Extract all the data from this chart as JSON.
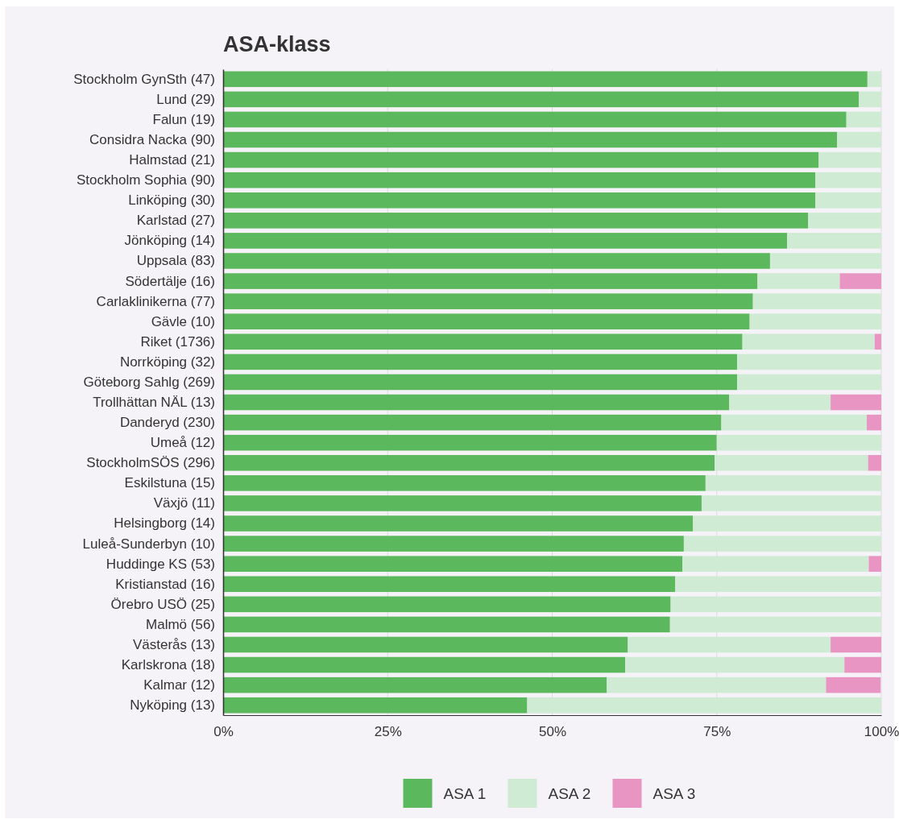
{
  "chart_data": {
    "type": "bar",
    "orientation": "horizontal",
    "stacked": true,
    "title": "ASA-klass",
    "categories": [
      "Stockholm GynSth (47)",
      "Lund (29)",
      "Falun (19)",
      "Considra Nacka (90)",
      "Halmstad (21)",
      "Stockholm Sophia (90)",
      "Linköping (30)",
      "Karlstad (27)",
      "Jönköping (14)",
      "Uppsala (83)",
      "Södertälje (16)",
      "Carlaklinikerna (77)",
      "Gävle (10)",
      "Riket (1736)",
      "Norrköping (32)",
      "Göteborg Sahlg (269)",
      "Trollhättan NÄL (13)",
      "Danderyd (230)",
      "Umeå (12)",
      "StockholmSÖS (296)",
      "Eskilstuna (15)",
      "Växjö (11)",
      "Helsingborg (14)",
      "Luleå-Sunderbyn (10)",
      "Huddinge KS (53)",
      "Kristianstad (16)",
      "Örebro USÖ (25)",
      "Malmö (56)",
      "Västerås (13)",
      "Karlskrona (18)",
      "Kalmar (12)",
      "Nyköping (13)"
    ],
    "series": [
      {
        "name": "ASA 1",
        "color": "#5cb85c",
        "values": [
          97.9,
          96.6,
          94.7,
          93.3,
          90.5,
          90.0,
          90.0,
          88.9,
          85.7,
          83.1,
          81.2,
          80.5,
          80.0,
          78.9,
          78.1,
          78.1,
          76.9,
          75.7,
          75.0,
          74.7,
          73.3,
          72.7,
          71.4,
          70.0,
          69.8,
          68.7,
          68.0,
          67.9,
          61.5,
          61.1,
          58.3,
          46.2
        ]
      },
      {
        "name": "ASA 2",
        "color": "#d0ebd4",
        "values": [
          2.1,
          3.4,
          5.3,
          6.7,
          9.5,
          10.0,
          10.0,
          11.1,
          14.3,
          16.9,
          12.5,
          19.5,
          20.0,
          20.1,
          21.9,
          21.9,
          15.4,
          22.1,
          25.0,
          23.3,
          26.7,
          27.3,
          28.6,
          30.0,
          28.3,
          31.3,
          32.0,
          32.1,
          30.8,
          33.3,
          33.3,
          53.8
        ]
      },
      {
        "name": "ASA 3",
        "color": "#e895c3",
        "values": [
          0,
          0,
          0,
          0,
          0,
          0,
          0,
          0,
          0,
          0,
          6.3,
          0,
          0,
          1.0,
          0,
          0,
          7.7,
          2.2,
          0,
          2.0,
          0,
          0,
          0,
          0,
          1.9,
          0,
          0,
          0,
          7.7,
          5.6,
          8.3,
          0
        ]
      }
    ],
    "xlim": [
      0,
      100
    ],
    "xticks": [
      {
        "value": 0,
        "label": "0%"
      },
      {
        "value": 25,
        "label": "25%"
      },
      {
        "value": 50,
        "label": "50%"
      },
      {
        "value": 75,
        "label": "75%"
      },
      {
        "value": 100,
        "label": "100%"
      }
    ],
    "grid": "x",
    "legend": "bottom"
  }
}
